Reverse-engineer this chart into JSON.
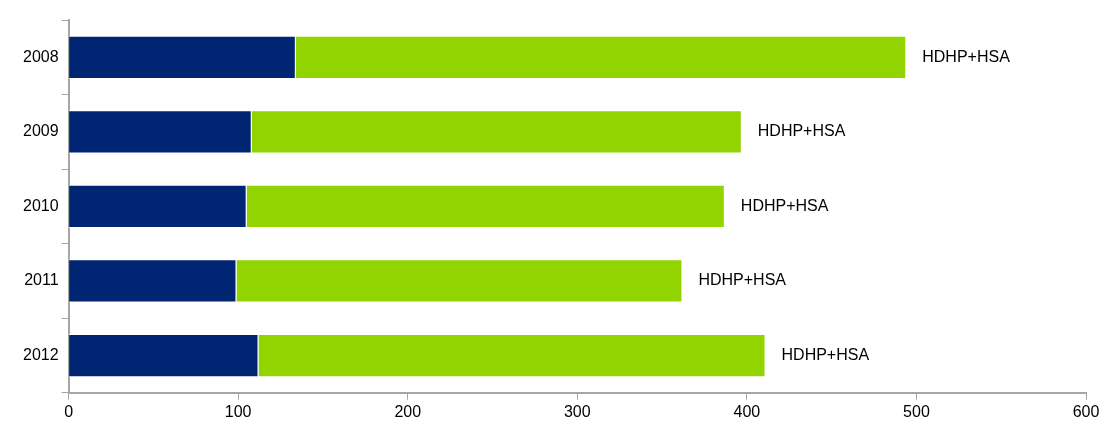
{
  "chart_data": {
    "type": "bar",
    "orientation": "horizontal",
    "stacked": true,
    "categories": [
      "2008",
      "2009",
      "2010",
      "2011",
      "2012"
    ],
    "series": [
      {
        "color": "#002673",
        "values": [
          134,
          108,
          105,
          99,
          112
        ]
      },
      {
        "color": "#92d400",
        "values": [
          360,
          289,
          282,
          263,
          299
        ]
      }
    ],
    "xlim": [
      0,
      600
    ],
    "xticks": [
      0,
      100,
      200,
      300,
      400,
      500,
      600
    ],
    "grid": false,
    "legend": false,
    "annotations": [
      {
        "text": "HDHP+HSA",
        "x": 494,
        "y": "2008"
      },
      {
        "text": "HDHP+HSA",
        "x": 397,
        "y": "2009"
      },
      {
        "text": "HDHP+HSA",
        "x": 387,
        "y": "2010"
      },
      {
        "text": "HDHP+HSA",
        "x": 362,
        "y": "2011"
      },
      {
        "text": "HDHP+HSA",
        "x": 411,
        "y": "2012"
      }
    ]
  }
}
